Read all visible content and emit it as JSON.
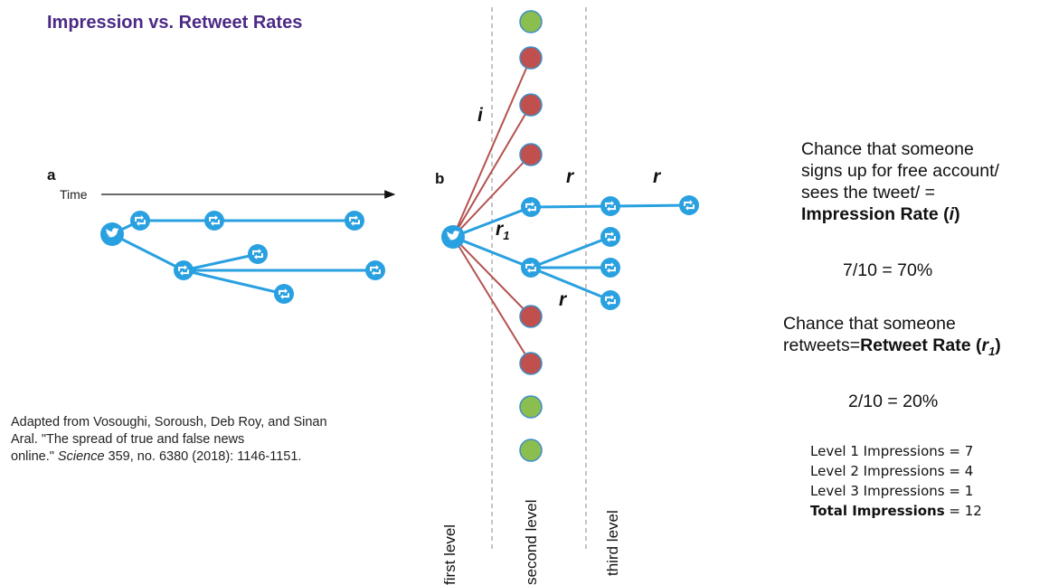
{
  "title": "Impression vs. Retweet Rates",
  "citation": {
    "line1": "Adapted from Vosoughi, Soroush, Deb Roy, and Sinan",
    "line2": "Aral. \"The spread of true and false news",
    "line3_prefix": "online.\"",
    "line3_journal": "Science",
    "line3_suffix": "359, no. 6380 (2018): 1146-1151."
  },
  "panel_a": {
    "letter": "a",
    "time_label": "Time"
  },
  "panel_b": {
    "letter": "b",
    "labels": {
      "i": "i",
      "r": "r",
      "r1": "r",
      "r1_sub": "1"
    },
    "levels": [
      "first level",
      "second level",
      "third level"
    ]
  },
  "legend_colors": {
    "tweet_blue": "#29a0e0",
    "impression_red": "#c0504d",
    "no_impression_green": "#8cbd4f",
    "impression_edge": "#b4534f"
  },
  "explanation": {
    "impression": {
      "line1": "Chance that someone",
      "line2": "signs up for free account/",
      "line3": "sees the tweet/ =",
      "term": "Impression Rate (",
      "symbol": "i",
      "close": ")",
      "value": "7/10 = 70%"
    },
    "retweet": {
      "line1": "Chance that someone",
      "line2_prefix": "retweets=",
      "term": "Retweet Rate (",
      "symbol": "r",
      "subscript": "1",
      "close": ")",
      "value": "2/10 = 20%"
    },
    "totals": [
      {
        "label": "Level 1 Impressions",
        "value": "= 7"
      },
      {
        "label": "Level 2 Impressions",
        "value": "= 4"
      },
      {
        "label": "Level 3 Impressions",
        "value": "= 1"
      },
      {
        "label": "Total Impressions",
        "value": "= 12",
        "bold": true
      }
    ]
  }
}
